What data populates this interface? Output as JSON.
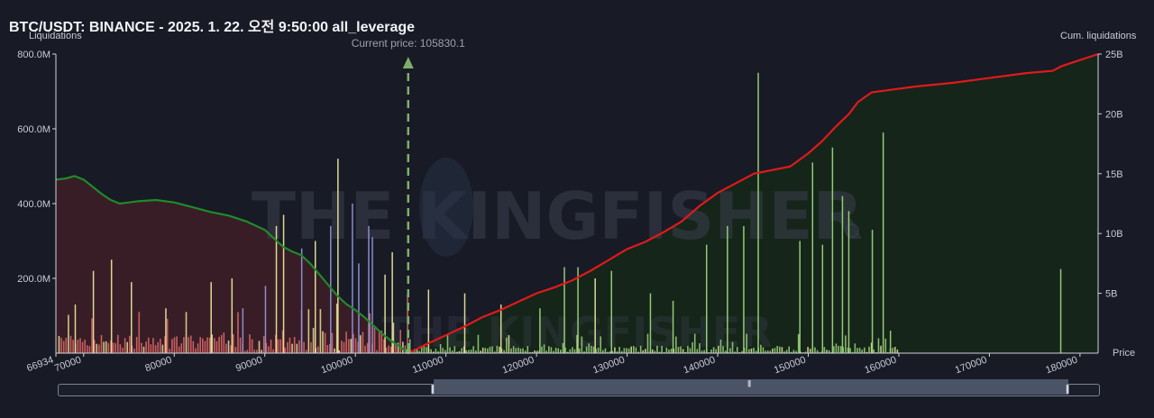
{
  "header": {
    "title": "BTC/USDT: BINANCE - 2025. 1. 22. 오전 9:50:00 all_leverage"
  },
  "watermark": {
    "text": "THE KINGFISHER"
  },
  "colors": {
    "background": "#181a25",
    "short_cum_line": "#e01a1a",
    "long_cum_line": "#1f8a2a",
    "long_area": "#3a1e26",
    "short_area": "#152619",
    "long_bar": "#e06a6a",
    "short_bar": "#9bd27a",
    "mixed_bar": "#e8e39a",
    "blue_bar": "#8e95d6",
    "current_price_marker": "#7fae68"
  },
  "chart_data": {
    "type": "bar",
    "title": "BTC/USDT: BINANCE - 2025. 1. 22. 오전 9:50:00 all_leverage",
    "ylabel": "Liquidations",
    "y2label": "Cum. liquidations",
    "xlabel": "Price",
    "xlim": [
      66934,
      182000
    ],
    "ylim": [
      0,
      800000000
    ],
    "y2lim": [
      0,
      25000000000
    ],
    "x_ticks": [
      66934,
      70000,
      80000,
      90000,
      100000,
      110000,
      120000,
      130000,
      140000,
      150000,
      160000,
      170000,
      180000
    ],
    "y_ticks": [
      {
        "value": 200000000,
        "label": "200.0M"
      },
      {
        "value": 400000000,
        "label": "400.0M"
      },
      {
        "value": 600000000,
        "label": "600.0M"
      },
      {
        "value": 800000000,
        "label": "800.0M"
      }
    ],
    "y2_ticks": [
      {
        "value": 5000000000,
        "label": "5B"
      },
      {
        "value": 10000000000,
        "label": "10B"
      },
      {
        "value": 15000000000,
        "label": "15B"
      },
      {
        "value": 20000000000,
        "label": "20B"
      },
      {
        "value": 25000000000,
        "label": "25B"
      }
    ],
    "current_price": {
      "value": 105830.1,
      "label": "Current price: 105830.1"
    },
    "cumulative_long": [
      [
        66934,
        14.5
      ],
      [
        68000,
        14.6
      ],
      [
        69000,
        14.8
      ],
      [
        70000,
        14.5
      ],
      [
        71000,
        13.9
      ],
      [
        72000,
        13.3
      ],
      [
        73000,
        12.8
      ],
      [
        74000,
        12.5
      ],
      [
        75000,
        12.6
      ],
      [
        76000,
        12.7
      ],
      [
        78000,
        12.8
      ],
      [
        80000,
        12.6
      ],
      [
        82000,
        12.2
      ],
      [
        84000,
        11.8
      ],
      [
        86000,
        11.5
      ],
      [
        88000,
        11.0
      ],
      [
        90000,
        10.3
      ],
      [
        91000,
        9.6
      ],
      [
        92000,
        8.9
      ],
      [
        93000,
        8.5
      ],
      [
        94000,
        8.2
      ],
      [
        95000,
        7.5
      ],
      [
        96000,
        6.6
      ],
      [
        97000,
        5.7
      ],
      [
        98000,
        4.8
      ],
      [
        99000,
        4.1
      ],
      [
        100000,
        3.6
      ],
      [
        101000,
        3.0
      ],
      [
        102000,
        2.3
      ],
      [
        103000,
        1.6
      ],
      [
        104000,
        1.0
      ],
      [
        105000,
        0.5
      ],
      [
        105830,
        0.0
      ]
    ],
    "cumulative_short": [
      [
        105830,
        0.0
      ],
      [
        108000,
        0.8
      ],
      [
        110000,
        1.5
      ],
      [
        112000,
        2.2
      ],
      [
        114000,
        3.0
      ],
      [
        116000,
        3.6
      ],
      [
        118000,
        4.3
      ],
      [
        120000,
        5.0
      ],
      [
        122000,
        5.5
      ],
      [
        124000,
        6.1
      ],
      [
        126000,
        6.9
      ],
      [
        128000,
        7.8
      ],
      [
        130000,
        8.7
      ],
      [
        132000,
        9.3
      ],
      [
        134000,
        10.1
      ],
      [
        136000,
        11.0
      ],
      [
        138000,
        12.3
      ],
      [
        140000,
        13.4
      ],
      [
        142000,
        14.2
      ],
      [
        144000,
        15.0
      ],
      [
        146000,
        15.3
      ],
      [
        148000,
        15.6
      ],
      [
        150000,
        16.7
      ],
      [
        151500,
        17.7
      ],
      [
        153000,
        18.9
      ],
      [
        154500,
        20.0
      ],
      [
        155500,
        21.0
      ],
      [
        157000,
        21.8
      ],
      [
        159000,
        22.0
      ],
      [
        162000,
        22.3
      ],
      [
        166000,
        22.6
      ],
      [
        170000,
        23.0
      ],
      [
        174000,
        23.4
      ],
      [
        177000,
        23.6
      ],
      [
        178000,
        24.0
      ],
      [
        182000,
        25.0
      ]
    ],
    "tall_bars": [
      {
        "price": 69000,
        "value": 130000000,
        "kind": "mixed"
      },
      {
        "price": 71000,
        "value": 220000000,
        "kind": "mixed"
      },
      {
        "price": 73000,
        "value": 250000000,
        "kind": "mixed"
      },
      {
        "price": 75200,
        "value": 190000000,
        "kind": "mixed"
      },
      {
        "price": 79000,
        "value": 120000000,
        "kind": "mixed"
      },
      {
        "price": 84000,
        "value": 190000000,
        "kind": "mixed"
      },
      {
        "price": 86300,
        "value": 200000000,
        "kind": "mixed"
      },
      {
        "price": 87500,
        "value": 120000000,
        "kind": "blue"
      },
      {
        "price": 90000,
        "value": 180000000,
        "kind": "blue"
      },
      {
        "price": 91200,
        "value": 340000000,
        "kind": "mixed"
      },
      {
        "price": 92000,
        "value": 370000000,
        "kind": "mixed"
      },
      {
        "price": 94000,
        "value": 280000000,
        "kind": "blue"
      },
      {
        "price": 95500,
        "value": 300000000,
        "kind": "mixed"
      },
      {
        "price": 97200,
        "value": 340000000,
        "kind": "blue"
      },
      {
        "price": 98000,
        "value": 520000000,
        "kind": "mixed"
      },
      {
        "price": 99600,
        "value": 400000000,
        "kind": "blue"
      },
      {
        "price": 100300,
        "value": 240000000,
        "kind": "blue"
      },
      {
        "price": 101400,
        "value": 340000000,
        "kind": "blue"
      },
      {
        "price": 101800,
        "value": 310000000,
        "kind": "blue"
      },
      {
        "price": 103200,
        "value": 210000000,
        "kind": "mixed"
      },
      {
        "price": 104000,
        "value": 270000000,
        "kind": "mixed"
      },
      {
        "price": 108000,
        "value": 170000000,
        "kind": "mixed"
      },
      {
        "price": 112000,
        "value": 160000000,
        "kind": "mixed"
      },
      {
        "price": 116000,
        "value": 130000000,
        "kind": "mixed"
      },
      {
        "price": 120300,
        "value": 120000000,
        "kind": "short"
      },
      {
        "price": 123000,
        "value": 230000000,
        "kind": "short"
      },
      {
        "price": 124500,
        "value": 230000000,
        "kind": "short"
      },
      {
        "price": 126400,
        "value": 200000000,
        "kind": "mixed"
      },
      {
        "price": 128200,
        "value": 220000000,
        "kind": "short"
      },
      {
        "price": 132500,
        "value": 160000000,
        "kind": "short"
      },
      {
        "price": 135000,
        "value": 140000000,
        "kind": "short"
      },
      {
        "price": 138700,
        "value": 290000000,
        "kind": "short"
      },
      {
        "price": 141000,
        "value": 340000000,
        "kind": "short"
      },
      {
        "price": 142800,
        "value": 340000000,
        "kind": "short"
      },
      {
        "price": 144400,
        "value": 750000000,
        "kind": "short"
      },
      {
        "price": 149000,
        "value": 300000000,
        "kind": "short"
      },
      {
        "price": 150400,
        "value": 510000000,
        "kind": "short"
      },
      {
        "price": 151500,
        "value": 290000000,
        "kind": "short"
      },
      {
        "price": 152600,
        "value": 550000000,
        "kind": "short"
      },
      {
        "price": 153700,
        "value": 420000000,
        "kind": "short"
      },
      {
        "price": 154400,
        "value": 380000000,
        "kind": "short"
      },
      {
        "price": 157000,
        "value": 330000000,
        "kind": "short"
      },
      {
        "price": 158200,
        "value": 590000000,
        "kind": "short"
      },
      {
        "price": 159000,
        "value": 60000000,
        "kind": "short"
      },
      {
        "price": 177800,
        "value": 225000000,
        "kind": "short"
      }
    ]
  }
}
